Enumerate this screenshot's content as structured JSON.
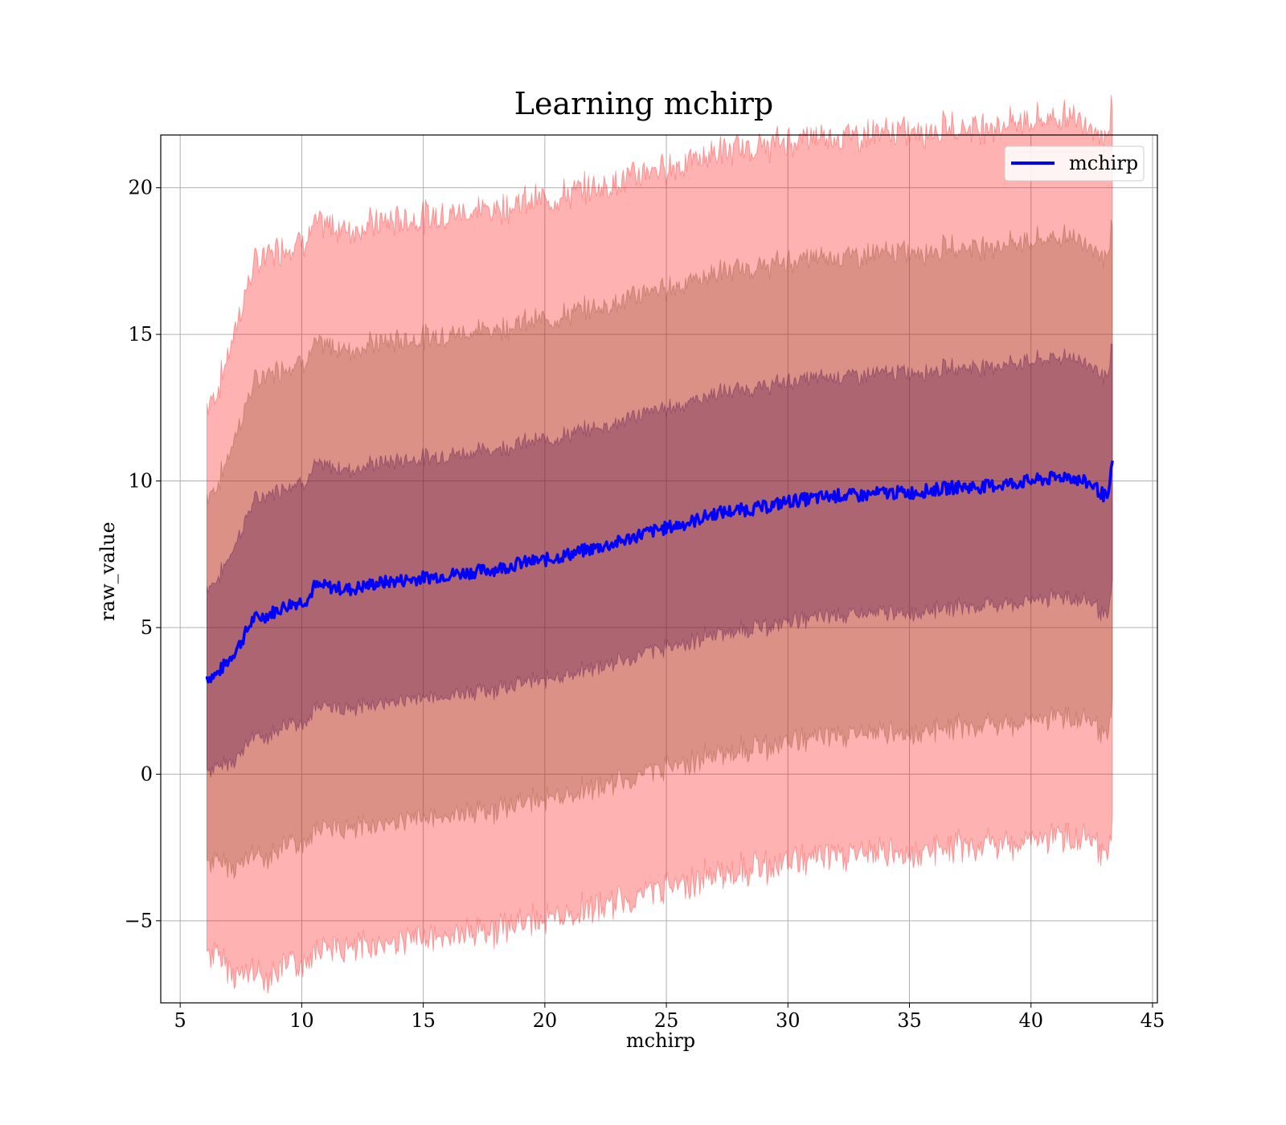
{
  "chart_data": {
    "type": "line",
    "title": "Learning mchirp",
    "xlabel": "mchirp",
    "ylabel": "raw_value",
    "xlim": [
      4.2,
      45.2
    ],
    "ylim": [
      -7.8,
      21.8
    ],
    "xticks": [
      5,
      10,
      15,
      20,
      25,
      30,
      35,
      40,
      45
    ],
    "yticks": [
      -5,
      0,
      5,
      10,
      15,
      20
    ],
    "ytick_labels": [
      "−5",
      "0",
      "5",
      "10",
      "15",
      "20"
    ],
    "grid": true,
    "legend_position": "top-right",
    "series": [
      {
        "name": "mchirp",
        "color": "#0000ff",
        "x": [
          6.1,
          6.5,
          7.0,
          7.5,
          8.0,
          8.5,
          9.0,
          9.5,
          10.0,
          10.3,
          10.5,
          11.0,
          12.0,
          13.0,
          14.0,
          15.0,
          16.0,
          17.0,
          18.0,
          19.0,
          20.0,
          21.0,
          22.0,
          23.0,
          24.0,
          25.0,
          26.0,
          27.0,
          28.0,
          29.0,
          30.0,
          31.0,
          32.0,
          33.0,
          34.0,
          35.0,
          36.0,
          37.0,
          38.0,
          39.0,
          40.0,
          41.0,
          41.5,
          42.0,
          42.5,
          43.0,
          43.2,
          43.35
        ],
        "y": [
          3.3,
          3.4,
          3.9,
          4.5,
          5.3,
          5.4,
          5.6,
          5.8,
          5.9,
          6.0,
          6.4,
          6.4,
          6.3,
          6.5,
          6.6,
          6.7,
          6.8,
          6.9,
          7.0,
          7.2,
          7.3,
          7.5,
          7.7,
          7.9,
          8.2,
          8.4,
          8.6,
          8.9,
          9.0,
          9.1,
          9.3,
          9.4,
          9.5,
          9.5,
          9.6,
          9.6,
          9.7,
          9.8,
          9.8,
          9.9,
          10.0,
          10.1,
          10.2,
          10.0,
          9.9,
          9.5,
          9.4,
          10.7
        ],
        "band_sigma": [
          3.1,
          3.2,
          3.5,
          3.8,
          4.0,
          4.1,
          4.1,
          4.1,
          4.1,
          4.1,
          4.1,
          4.1,
          4.1,
          4.1,
          4.1,
          4.1,
          4.1,
          4.1,
          4.1,
          4.1,
          4.1,
          4.1,
          4.1,
          4.1,
          4.1,
          4.1,
          4.1,
          4.1,
          4.1,
          4.1,
          4.1,
          4.1,
          4.1,
          4.1,
          4.1,
          4.1,
          4.1,
          4.1,
          4.1,
          4.1,
          4.1,
          4.1,
          4.1,
          4.1,
          4.1,
          4.1,
          4.1,
          4.1
        ]
      }
    ],
    "bands": [
      {
        "level": 3,
        "color": "#ff0000",
        "opacity": 0.3
      },
      {
        "level": 2,
        "color": "#884422",
        "opacity": 0.3
      },
      {
        "level": 1,
        "color": "#440044",
        "opacity": 0.3
      }
    ]
  }
}
